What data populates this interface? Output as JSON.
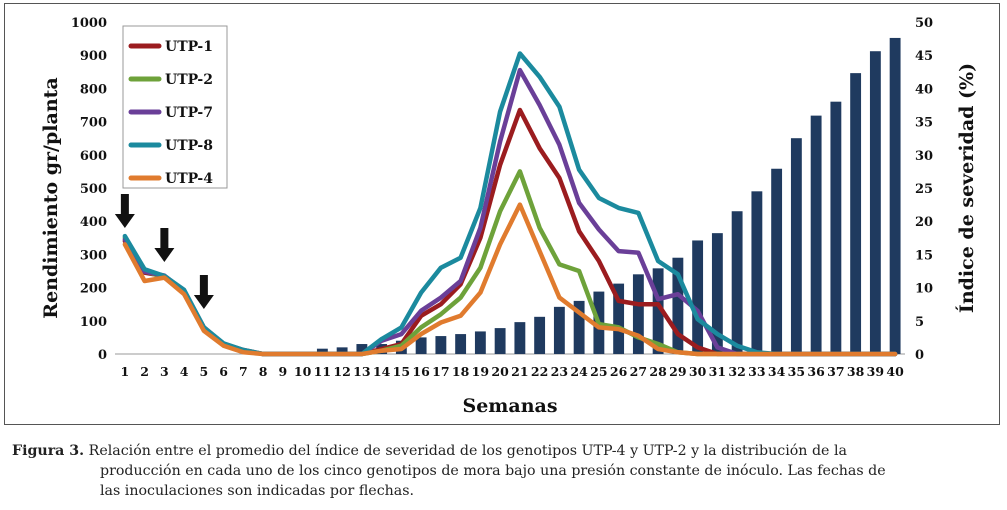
{
  "chart_data": {
    "type": "bar+line",
    "xlabel": "Semanas",
    "ylabel_left": "Rendimiento gr/planta",
    "ylabel_right": "Índice de severidad (%)",
    "x": [
      1,
      2,
      3,
      4,
      5,
      6,
      7,
      8,
      9,
      10,
      11,
      12,
      13,
      14,
      15,
      16,
      17,
      18,
      19,
      20,
      21,
      22,
      23,
      24,
      25,
      26,
      27,
      28,
      29,
      30,
      31,
      32,
      33,
      34,
      35,
      36,
      37,
      38,
      39,
      40
    ],
    "ylim_left": [
      0,
      1000
    ],
    "yticks_left": [
      0,
      100,
      200,
      300,
      400,
      500,
      600,
      700,
      800,
      900,
      1000
    ],
    "ylim_right": [
      0,
      50
    ],
    "yticks_right": [
      0,
      5,
      10,
      15,
      20,
      25,
      30,
      35,
      40,
      45,
      50
    ],
    "bars": {
      "axis": "right",
      "color": "#1f3a5f",
      "values": [
        0,
        0,
        0,
        0,
        0,
        0,
        0,
        0,
        0,
        0,
        0.8,
        1.0,
        1.5,
        1.5,
        2.0,
        2.5,
        2.7,
        3.0,
        3.4,
        3.9,
        4.8,
        5.6,
        7.1,
        8.0,
        9.4,
        10.6,
        12.0,
        12.9,
        14.5,
        17.1,
        18.2,
        21.5,
        24.5,
        27.9,
        32.5,
        35.9,
        38.0,
        42.3,
        45.6,
        47.6
      ]
    },
    "series": [
      {
        "name": "UTP-1",
        "color": "#9b1c1f",
        "values": [
          340,
          245,
          235,
          190,
          80,
          30,
          12,
          0,
          0,
          0,
          0,
          0,
          0,
          15,
          30,
          115,
          150,
          210,
          350,
          570,
          735,
          620,
          530,
          370,
          280,
          160,
          150,
          150,
          60,
          20,
          0,
          0,
          0,
          0,
          0,
          0,
          0,
          0,
          0,
          0
        ]
      },
      {
        "name": "UTP-2",
        "color": "#6ea23a",
        "values": [
          350,
          250,
          230,
          190,
          75,
          30,
          10,
          0,
          0,
          0,
          0,
          0,
          0,
          10,
          25,
          80,
          120,
          170,
          260,
          430,
          550,
          380,
          270,
          250,
          90,
          80,
          50,
          30,
          5,
          0,
          0,
          0,
          0,
          0,
          0,
          0,
          0,
          0,
          0,
          0
        ]
      },
      {
        "name": "UTP-7",
        "color": "#6a3f98",
        "values": [
          345,
          248,
          236,
          190,
          78,
          28,
          10,
          0,
          0,
          0,
          0,
          0,
          0,
          40,
          60,
          130,
          170,
          220,
          380,
          640,
          855,
          750,
          630,
          455,
          375,
          310,
          305,
          165,
          180,
          130,
          20,
          0,
          0,
          0,
          0,
          0,
          0,
          0,
          0,
          0
        ]
      },
      {
        "name": "UTP-8",
        "color": "#1b8a9e",
        "values": [
          355,
          255,
          235,
          193,
          80,
          32,
          12,
          0,
          0,
          0,
          0,
          0,
          0,
          45,
          80,
          185,
          260,
          290,
          440,
          730,
          905,
          835,
          745,
          555,
          470,
          440,
          425,
          280,
          240,
          105,
          60,
          25,
          5,
          0,
          0,
          0,
          0,
          0,
          0,
          0
        ]
      },
      {
        "name": "UTP-4",
        "color": "#e07b2e",
        "values": [
          330,
          220,
          230,
          180,
          70,
          25,
          5,
          0,
          0,
          0,
          0,
          0,
          0,
          10,
          15,
          60,
          95,
          115,
          185,
          330,
          450,
          310,
          170,
          125,
          80,
          75,
          55,
          15,
          5,
          0,
          0,
          0,
          0,
          0,
          0,
          0,
          0,
          0,
          0,
          0
        ]
      }
    ],
    "annotations": [
      {
        "type": "arrow",
        "at_week": 1
      },
      {
        "type": "arrow",
        "at_week": 3
      },
      {
        "type": "arrow",
        "at_week": 5
      }
    ],
    "legend": "top-left inside"
  },
  "caption": {
    "label": "Figura 3.",
    "line1": "Relación entre el promedio del índice de severidad de los genotipos UTP-4 y UTP-2 y la distribución de la",
    "line2": "producción en cada uno de los cinco genotipos de mora bajo una presión constante de inóculo. Las fechas de",
    "line3": "las inoculaciones son indicadas por flechas."
  }
}
